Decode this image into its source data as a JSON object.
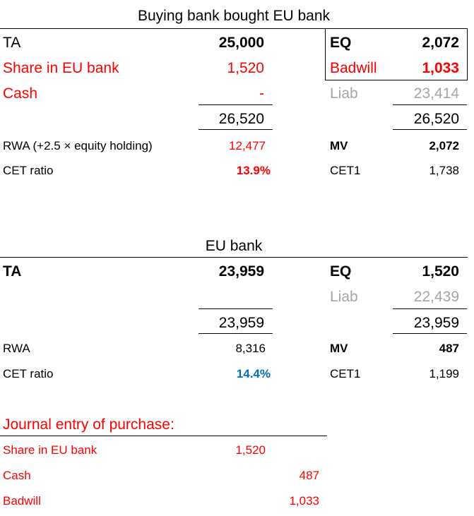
{
  "buying": {
    "title": "Buying bank bought EU bank",
    "ta_label": "TA",
    "ta_value": "25,000",
    "share_label": "Share in EU bank",
    "share_value": "1,520",
    "cash_label": "Cash",
    "cash_value": "-",
    "assets_total": "26,520",
    "eq_label": "EQ",
    "eq_value": "2,072",
    "badwill_label": "Badwill",
    "badwill_value": "1,033",
    "liab_label": "Liab",
    "liab_value": "23,414",
    "liab_total": "26,520",
    "rwa_label": "RWA (+2.5 × equity holding)",
    "rwa_value": "12,477",
    "cet_label": "CET ratio",
    "cet_value": "13.9%",
    "mv_label": "MV",
    "mv_value": "2,072",
    "cet1_label": "CET1",
    "cet1_value": "1,738"
  },
  "eu": {
    "title": "EU bank",
    "ta_label": "TA",
    "ta_value": "23,959",
    "assets_total": "23,959",
    "eq_label": "EQ",
    "eq_value": "1,520",
    "liab_label": "Liab",
    "liab_value": "22,439",
    "liab_total": "23,959",
    "rwa_label": "RWA",
    "rwa_value": "8,316",
    "cet_label": "CET ratio",
    "cet_value": "14.4%",
    "mv_label": "MV",
    "mv_value": "487",
    "cet1_label": "CET1",
    "cet1_value": "1,199"
  },
  "journal": {
    "title": "Journal entry of purchase:",
    "rows": [
      {
        "label": "Share in EU bank",
        "debit": "1,520",
        "credit": ""
      },
      {
        "label": "Cash",
        "debit": "",
        "credit": "487"
      },
      {
        "label": "Badwill",
        "debit": "",
        "credit": "1,033"
      }
    ]
  },
  "colors": {
    "red": "#ff0000",
    "gray": "#a6a6a6",
    "blue": "#0070c0"
  }
}
